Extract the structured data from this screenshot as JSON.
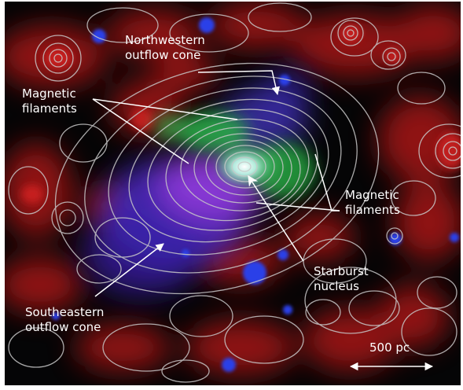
{
  "labels": {
    "northwestern_cone": [
      "Northwestern",
      "outflow cone"
    ],
    "magnetic_left": [
      "Magnetic",
      "filaments"
    ],
    "magnetic_right": [
      "Magnetic",
      "filaments"
    ],
    "starburst_nucleus": [
      "Starburst",
      "nucleus"
    ],
    "southeastern_cone": [
      "Southeastern",
      "outflow cone"
    ],
    "scale_bar": "500 pc"
  },
  "colors": {
    "background": "#050506",
    "dust_red": "#c41a1a",
    "hydrogen_green": "#1fa33a",
    "xray_blue": "#2a3ee6",
    "outflow_violet": "#8a3fd8",
    "contours": "#c8c8c8",
    "annotations": "#ffffff"
  }
}
